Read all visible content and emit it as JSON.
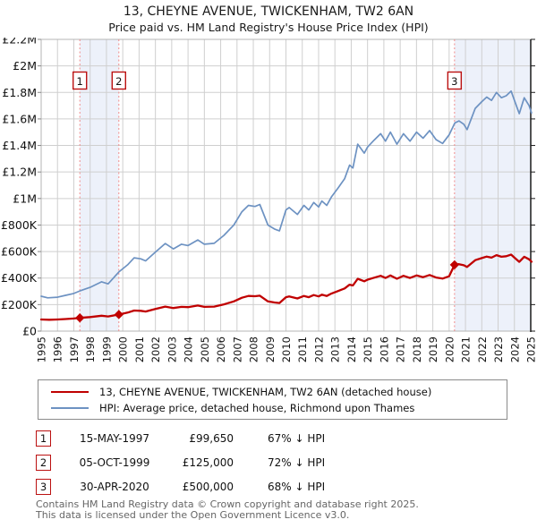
{
  "title": "13, CHEYNE AVENUE, TWICKENHAM, TW2 6AN",
  "subtitle": "Price paid vs. HM Land Registry's House Price Index (HPI)",
  "chart_data": {
    "type": "line",
    "title": "13, CHEYNE AVENUE, TWICKENHAM, TW2 6AN — Price paid vs. HPI",
    "x_axis": {
      "min": 1995,
      "max": 2025,
      "gridline_step": 1,
      "tick_labels": [
        "1995",
        "1996",
        "1997",
        "1998",
        "1999",
        "2000",
        "2001",
        "2002",
        "2003",
        "2004",
        "2005",
        "2006",
        "2007",
        "2008",
        "2009",
        "2010",
        "2011",
        "2012",
        "2013",
        "2014",
        "2015",
        "2016",
        "2017",
        "2018",
        "2019",
        "2020",
        "2021",
        "2022",
        "2023",
        "2024",
        "2025"
      ]
    },
    "y_axis": {
      "min": 0,
      "max": 2200000,
      "gridline_step": 200000,
      "tick_labels": [
        "£0",
        "£200K",
        "£400K",
        "£600K",
        "£800K",
        "£1M",
        "£1.2M",
        "£1.4M",
        "£1.6M",
        "£1.8M",
        "£2M",
        "£2.2M"
      ]
    },
    "series": [
      {
        "name": "13, CHEYNE AVENUE, TWICKENHAM, TW2 6AN (detached house)",
        "color": "#c00000",
        "stroke_width": 2.3,
        "points": [
          [
            1995.0,
            88000
          ],
          [
            1995.5,
            86000
          ],
          [
            1996.0,
            88000
          ],
          [
            1996.5,
            91000
          ],
          [
            1997.0,
            95000
          ],
          [
            1997.37,
            99650
          ],
          [
            1998.0,
            106000
          ],
          [
            1998.7,
            116000
          ],
          [
            1999.1,
            111000
          ],
          [
            1999.76,
            125000
          ],
          [
            2000.3,
            140000
          ],
          [
            2000.7,
            155000
          ],
          [
            2001.1,
            153000
          ],
          [
            2001.4,
            148000
          ],
          [
            2002.0,
            167000
          ],
          [
            2002.6,
            185000
          ],
          [
            2003.1,
            174000
          ],
          [
            2003.6,
            183000
          ],
          [
            2004.0,
            181000
          ],
          [
            2004.6,
            193000
          ],
          [
            2005.0,
            183000
          ],
          [
            2005.6,
            185000
          ],
          [
            2006.2,
            202000
          ],
          [
            2006.8,
            224000
          ],
          [
            2007.3,
            252000
          ],
          [
            2007.7,
            265000
          ],
          [
            2008.1,
            263000
          ],
          [
            2008.4,
            267000
          ],
          [
            2008.9,
            224000
          ],
          [
            2009.3,
            216000
          ],
          [
            2009.6,
            212000
          ],
          [
            2010.0,
            256000
          ],
          [
            2010.2,
            261000
          ],
          [
            2010.7,
            246000
          ],
          [
            2011.1,
            265000
          ],
          [
            2011.4,
            256000
          ],
          [
            2011.7,
            272000
          ],
          [
            2012.0,
            262000
          ],
          [
            2012.2,
            275000
          ],
          [
            2012.5,
            265000
          ],
          [
            2012.8,
            284000
          ],
          [
            2013.2,
            302000
          ],
          [
            2013.6,
            322000
          ],
          [
            2013.9,
            350000
          ],
          [
            2014.1,
            344000
          ],
          [
            2014.4,
            395000
          ],
          [
            2014.8,
            376000
          ],
          [
            2015.0,
            388000
          ],
          [
            2015.4,
            403000
          ],
          [
            2015.8,
            417000
          ],
          [
            2016.1,
            401000
          ],
          [
            2016.4,
            420000
          ],
          [
            2016.8,
            395000
          ],
          [
            2017.2,
            417000
          ],
          [
            2017.6,
            401000
          ],
          [
            2018.0,
            420000
          ],
          [
            2018.4,
            407000
          ],
          [
            2018.8,
            423000
          ],
          [
            2019.2,
            404000
          ],
          [
            2019.6,
            396000
          ],
          [
            2020.0,
            414000
          ],
          [
            2020.33,
            500000
          ],
          [
            2020.6,
            505000
          ],
          [
            2020.9,
            497000
          ],
          [
            2021.1,
            484000
          ],
          [
            2021.6,
            535000
          ],
          [
            2022.0,
            551000
          ],
          [
            2022.3,
            562000
          ],
          [
            2022.6,
            554000
          ],
          [
            2022.9,
            573000
          ],
          [
            2023.2,
            561000
          ],
          [
            2023.5,
            565000
          ],
          [
            2023.8,
            577000
          ],
          [
            2024.0,
            554000
          ],
          [
            2024.3,
            522000
          ],
          [
            2024.6,
            561000
          ],
          [
            2024.9,
            541000
          ],
          [
            2025.05,
            524000
          ]
        ]
      },
      {
        "name": "HPI: Average price, detached house, Richmond upon Thames",
        "color": "#6d92c2",
        "stroke_width": 1.7,
        "points": [
          [
            1995.0,
            263000
          ],
          [
            1995.4,
            251000
          ],
          [
            1996.0,
            256000
          ],
          [
            1996.5,
            270000
          ],
          [
            1997.0,
            284000
          ],
          [
            1997.37,
            303000
          ],
          [
            1998.0,
            330000
          ],
          [
            1998.7,
            372000
          ],
          [
            1999.1,
            356000
          ],
          [
            1999.76,
            446000
          ],
          [
            2000.3,
            500000
          ],
          [
            2000.7,
            553000
          ],
          [
            2001.1,
            545000
          ],
          [
            2001.4,
            530000
          ],
          [
            2002.0,
            595000
          ],
          [
            2002.6,
            661000
          ],
          [
            2003.1,
            620000
          ],
          [
            2003.6,
            655000
          ],
          [
            2004.0,
            645000
          ],
          [
            2004.6,
            688000
          ],
          [
            2005.0,
            655000
          ],
          [
            2005.6,
            662000
          ],
          [
            2006.2,
            722000
          ],
          [
            2006.8,
            800000
          ],
          [
            2007.3,
            900000
          ],
          [
            2007.7,
            948000
          ],
          [
            2008.1,
            940000
          ],
          [
            2008.4,
            955000
          ],
          [
            2008.9,
            800000
          ],
          [
            2009.3,
            770000
          ],
          [
            2009.6,
            756000
          ],
          [
            2010.0,
            914000
          ],
          [
            2010.2,
            932000
          ],
          [
            2010.7,
            880000
          ],
          [
            2011.1,
            948000
          ],
          [
            2011.4,
            914000
          ],
          [
            2011.7,
            970000
          ],
          [
            2012.0,
            936000
          ],
          [
            2012.2,
            981000
          ],
          [
            2012.5,
            948000
          ],
          [
            2012.8,
            1015000
          ],
          [
            2013.2,
            1080000
          ],
          [
            2013.6,
            1150000
          ],
          [
            2013.9,
            1252000
          ],
          [
            2014.1,
            1230000
          ],
          [
            2014.4,
            1410000
          ],
          [
            2014.8,
            1342000
          ],
          [
            2015.0,
            1388000
          ],
          [
            2015.4,
            1440000
          ],
          [
            2015.8,
            1489000
          ],
          [
            2016.1,
            1433000
          ],
          [
            2016.4,
            1501000
          ],
          [
            2016.8,
            1410000
          ],
          [
            2017.2,
            1489000
          ],
          [
            2017.6,
            1433000
          ],
          [
            2018.0,
            1501000
          ],
          [
            2018.4,
            1455000
          ],
          [
            2018.8,
            1512000
          ],
          [
            2019.2,
            1444000
          ],
          [
            2019.6,
            1415000
          ],
          [
            2020.0,
            1480000
          ],
          [
            2020.35,
            1570000
          ],
          [
            2020.6,
            1585000
          ],
          [
            2020.9,
            1560000
          ],
          [
            2021.1,
            1520000
          ],
          [
            2021.6,
            1680000
          ],
          [
            2022.0,
            1730000
          ],
          [
            2022.3,
            1765000
          ],
          [
            2022.6,
            1740000
          ],
          [
            2022.9,
            1800000
          ],
          [
            2023.2,
            1760000
          ],
          [
            2023.5,
            1775000
          ],
          [
            2023.8,
            1810000
          ],
          [
            2024.0,
            1740000
          ],
          [
            2024.3,
            1640000
          ],
          [
            2024.6,
            1760000
          ],
          [
            2024.9,
            1700000
          ],
          [
            2025.05,
            1645000
          ]
        ]
      }
    ],
    "sales": [
      {
        "label": "1",
        "year": 1997.37,
        "price": 99650
      },
      {
        "label": "2",
        "year": 1999.76,
        "price": 125000
      },
      {
        "label": "3",
        "year": 2020.33,
        "price": 500000
      }
    ],
    "ownership_bands": [
      [
        1997.37,
        1999.76
      ],
      [
        2020.33,
        2025.2
      ]
    ],
    "legend_position": "bottom",
    "grid": true,
    "colors": {
      "property": "#c00000",
      "hpi": "#6d92c2",
      "sale_line": "#f08a8a",
      "band": "#edf1fa",
      "grid": "#cfcfcf",
      "border": "#b5b5b5",
      "axis_right": "#1a1a1a",
      "marker_box_border": "#bb1111"
    }
  },
  "legend": {
    "entries": [
      {
        "label": "13, CHEYNE AVENUE, TWICKENHAM, TW2 6AN (detached house)",
        "color": "#c00000"
      },
      {
        "label": "HPI: Average price, detached house, Richmond upon Thames",
        "color": "#6d92c2"
      }
    ]
  },
  "transactions": [
    {
      "label": "1",
      "date": "15-MAY-1997",
      "price": "£99,650",
      "vs_hpi": "67% ↓ HPI"
    },
    {
      "label": "2",
      "date": "05-OCT-1999",
      "price": "£125,000",
      "vs_hpi": "72% ↓ HPI"
    },
    {
      "label": "3",
      "date": "30-APR-2020",
      "price": "£500,000",
      "vs_hpi": "68% ↓ HPI"
    }
  ],
  "footer": {
    "line1": "Contains HM Land Registry data © Crown copyright and database right 2025.",
    "line2": "This data is licensed under the Open Government Licence v3.0."
  }
}
